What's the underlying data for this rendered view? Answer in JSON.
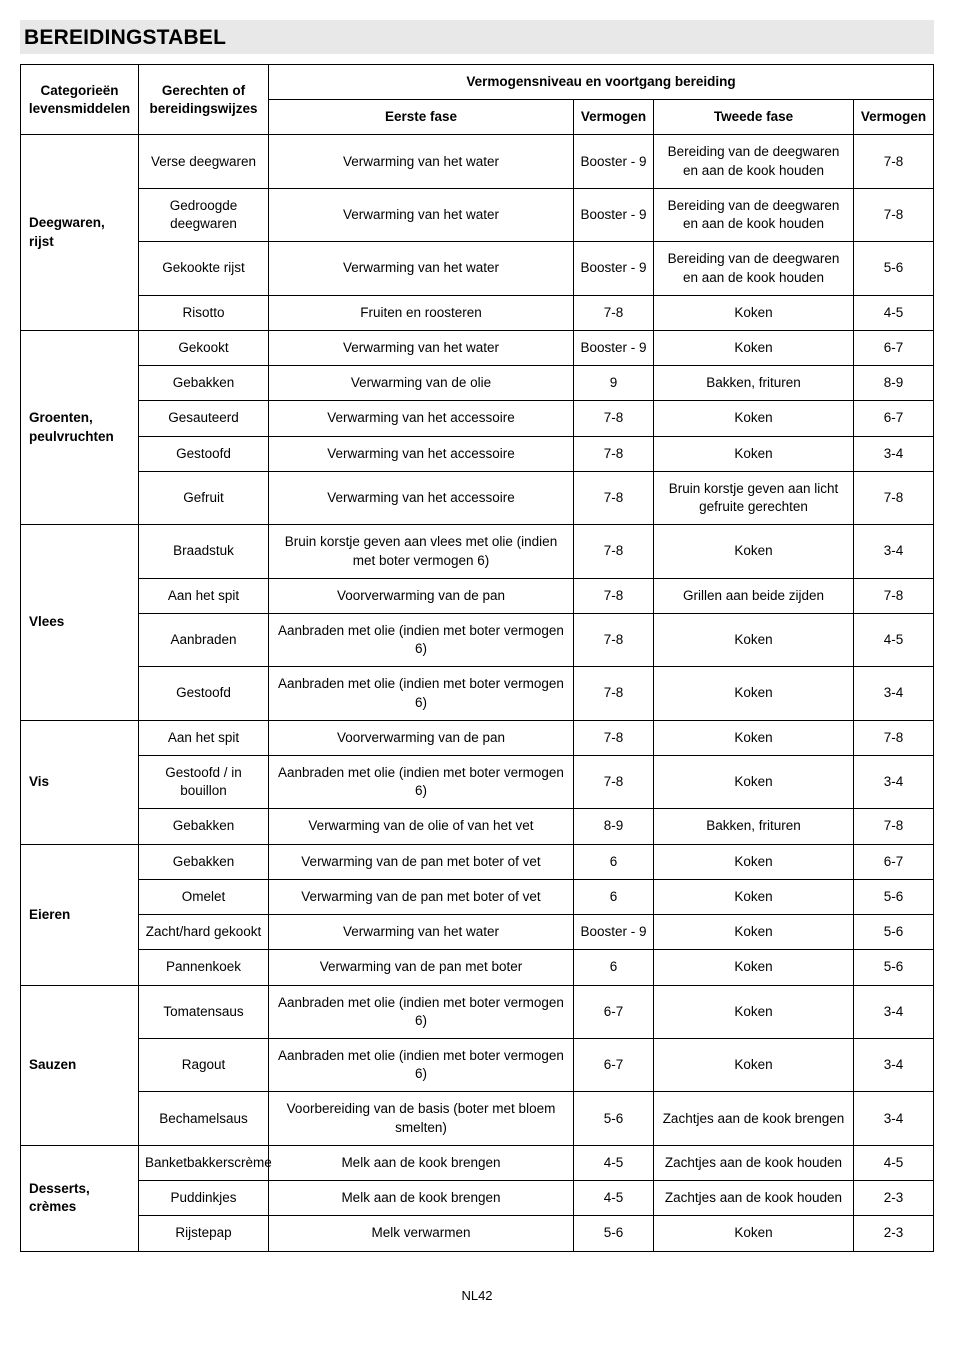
{
  "title": "BEREIDINGSTABEL",
  "page_number": "NL42",
  "headers": {
    "cat": "Categorieën levensmiddelen",
    "dish": "Gerechten of bereidingswijzes",
    "span": "Vermogensniveau en voortgang bereiding",
    "phase1": "Eerste fase",
    "pow1": "Vermogen",
    "phase2": "Tweede fase",
    "pow2": "Vermogen"
  },
  "sections": [
    {
      "cat": "Deegwaren, rijst",
      "rows": [
        {
          "dish": "Verse deegwaren",
          "p1": "Verwarming van het water",
          "v1": "Booster - 9",
          "p2": "Bereiding van de deegwaren en aan de kook houden",
          "v2": "7-8"
        },
        {
          "dish": "Gedroogde deegwaren",
          "p1": "Verwarming van het water",
          "v1": "Booster - 9",
          "p2": "Bereiding van de deegwaren en aan de kook houden",
          "v2": "7-8"
        },
        {
          "dish": "Gekookte rijst",
          "p1": "Verwarming van het water",
          "v1": "Booster - 9",
          "p2": "Bereiding van de deegwaren en aan de kook houden",
          "v2": "5-6"
        },
        {
          "dish": "Risotto",
          "p1": "Fruiten en roosteren",
          "v1": "7-8",
          "p2": "Koken",
          "v2": "4-5"
        }
      ]
    },
    {
      "cat": "Groenten, peulvruchten",
      "rows": [
        {
          "dish": "Gekookt",
          "p1": "Verwarming van het water",
          "v1": "Booster - 9",
          "p2": "Koken",
          "v2": "6-7"
        },
        {
          "dish": "Gebakken",
          "p1": "Verwarming van de olie",
          "v1": "9",
          "p2": "Bakken, frituren",
          "v2": "8-9"
        },
        {
          "dish": "Gesauteerd",
          "p1": "Verwarming van het accessoire",
          "v1": "7-8",
          "p2": "Koken",
          "v2": "6-7"
        },
        {
          "dish": "Gestoofd",
          "p1": "Verwarming van het accessoire",
          "v1": "7-8",
          "p2": "Koken",
          "v2": "3-4"
        },
        {
          "dish": "Gefruit",
          "p1": "Verwarming van het accessoire",
          "v1": "7-8",
          "p2": "Bruin korstje geven aan licht gefruite gerechten",
          "v2": "7-8"
        }
      ]
    },
    {
      "cat": "Vlees",
      "rows": [
        {
          "dish": "Braadstuk",
          "p1": "Bruin korstje geven aan vlees met olie (indien met boter vermogen 6)",
          "v1": "7-8",
          "p2": "Koken",
          "v2": "3-4"
        },
        {
          "dish": "Aan het spit",
          "p1": "Voorverwarming van de pan",
          "v1": "7-8",
          "p2": "Grillen aan beide zijden",
          "v2": "7-8"
        },
        {
          "dish": "Aanbraden",
          "p1": "Aanbraden met olie (indien met boter vermogen 6)",
          "v1": "7-8",
          "p2": "Koken",
          "v2": "4-5"
        },
        {
          "dish": "Gestoofd",
          "p1": "Aanbraden met olie (indien met boter vermogen 6)",
          "v1": "7-8",
          "p2": "Koken",
          "v2": "3-4"
        }
      ]
    },
    {
      "cat": "Vis",
      "rows": [
        {
          "dish": "Aan het spit",
          "p1": "Voorverwarming van de pan",
          "v1": "7-8",
          "p2": "Koken",
          "v2": "7-8"
        },
        {
          "dish": "Gestoofd / in bouillon",
          "p1": "Aanbraden met olie (indien met boter vermogen 6)",
          "v1": "7-8",
          "p2": "Koken",
          "v2": "3-4"
        },
        {
          "dish": "Gebakken",
          "p1": "Verwarming van de olie of van het vet",
          "v1": "8-9",
          "p2": "Bakken, frituren",
          "v2": "7-8"
        }
      ]
    },
    {
      "cat": "Eieren",
      "rows": [
        {
          "dish": "Gebakken",
          "p1": "Verwarming van de pan met boter of vet",
          "v1": "6",
          "p2": "Koken",
          "v2": "6-7"
        },
        {
          "dish": "Omelet",
          "p1": "Verwarming van de pan met boter of vet",
          "v1": "6",
          "p2": "Koken",
          "v2": "5-6"
        },
        {
          "dish": "Zacht/hard gekookt",
          "p1": "Verwarming van het water",
          "v1": "Booster - 9",
          "p2": "Koken",
          "v2": "5-6"
        },
        {
          "dish": "Pannenkoek",
          "p1": "Verwarming van de pan met boter",
          "v1": "6",
          "p2": "Koken",
          "v2": "5-6"
        }
      ]
    },
    {
      "cat": "Sauzen",
      "rows": [
        {
          "dish": "Tomatensaus",
          "p1": "Aanbraden met olie (indien met boter vermogen 6)",
          "v1": "6-7",
          "p2": "Koken",
          "v2": "3-4"
        },
        {
          "dish": "Ragout",
          "p1": "Aanbraden met olie (indien met boter vermogen 6)",
          "v1": "6-7",
          "p2": "Koken",
          "v2": "3-4"
        },
        {
          "dish": "Bechamelsaus",
          "p1": "Voorbereiding van de basis (boter met bloem smelten)",
          "v1": "5-6",
          "p2": "Zachtjes aan de kook brengen",
          "v2": "3-4"
        }
      ]
    },
    {
      "cat": "Desserts, crèmes",
      "rows": [
        {
          "dish": "Banketbakkerscrème",
          "p1": "Melk aan de kook brengen",
          "v1": "4-5",
          "p2": "Zachtjes aan de kook houden",
          "v2": "4-5"
        },
        {
          "dish": "Puddinkjes",
          "p1": "Melk aan de kook brengen",
          "v1": "4-5",
          "p2": "Zachtjes aan de kook houden",
          "v2": "2-3"
        },
        {
          "dish": "Rijstepap",
          "p1": "Melk verwarmen",
          "v1": "5-6",
          "p2": "Koken",
          "v2": "2-3"
        }
      ]
    }
  ]
}
